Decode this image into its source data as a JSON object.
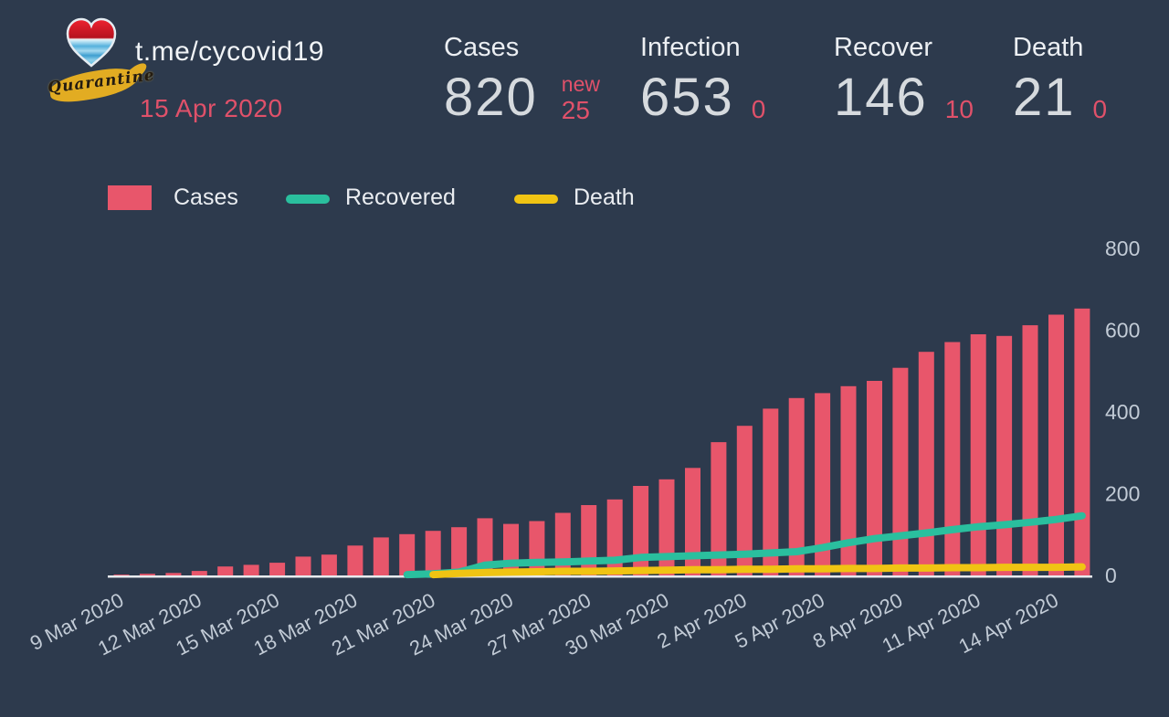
{
  "header": {
    "logo_caption": "Quarantine",
    "channel_link": "t.me/cycovid19",
    "date": "15 Apr 2020"
  },
  "stats": [
    {
      "label": "Cases",
      "value": "820",
      "delta_label": "new",
      "delta": "25"
    },
    {
      "label": "Infection",
      "value": "653",
      "delta": "0"
    },
    {
      "label": "Recover",
      "value": "146",
      "delta": "10"
    },
    {
      "label": "Death",
      "value": "21",
      "delta": "0"
    }
  ],
  "legend": [
    {
      "label": "Cases",
      "color": "#e8566b",
      "swatch": "rect"
    },
    {
      "label": "Recovered",
      "color": "#2abf9e",
      "swatch": "line"
    },
    {
      "label": "Death",
      "color": "#f0c413",
      "swatch": "line"
    }
  ],
  "colors": {
    "background": "#2d3a4d",
    "accent_red": "#e0516a",
    "bar_red": "#e8566b",
    "recovered_teal": "#2abf9e",
    "death_yellow": "#f0c413",
    "axis_line": "#e8ebee",
    "tick_label": "#c2cbd6",
    "heading_text": "#eceff3",
    "number_text": "#d6dade"
  },
  "chart_data": {
    "type": "bar",
    "title": "",
    "xlabel": "",
    "ylabel": "",
    "ylim": [
      0,
      800
    ],
    "y_ticks": [
      0,
      200,
      400,
      600,
      800
    ],
    "y_axis_side": "right",
    "grid": false,
    "legend_position": "top-left",
    "x_tick_every": 3,
    "x_tick_labels": [
      "9 Mar 2020",
      "12 Mar 2020",
      "15 Mar 2020",
      "18 Mar 2020",
      "21 Mar 2020",
      "24 Mar 2020",
      "27 Mar 2020",
      "30 Mar 2020",
      "2 Apr 2020",
      "5 Apr 2020",
      "8 Apr 2020",
      "11 Apr 2020",
      "14 Apr 2020"
    ],
    "categories": [
      "9 Mar 2020",
      "10 Mar 2020",
      "11 Mar 2020",
      "12 Mar 2020",
      "13 Mar 2020",
      "14 Mar 2020",
      "15 Mar 2020",
      "16 Mar 2020",
      "17 Mar 2020",
      "18 Mar 2020",
      "19 Mar 2020",
      "20 Mar 2020",
      "21 Mar 2020",
      "22 Mar 2020",
      "23 Mar 2020",
      "24 Mar 2020",
      "25 Mar 2020",
      "26 Mar 2020",
      "27 Mar 2020",
      "28 Mar 2020",
      "29 Mar 2020",
      "30 Mar 2020",
      "31 Mar 2020",
      "1 Apr 2020",
      "2 Apr 2020",
      "3 Apr 2020",
      "4 Apr 2020",
      "5 Apr 2020",
      "6 Apr 2020",
      "7 Apr 2020",
      "8 Apr 2020",
      "9 Apr 2020",
      "10 Apr 2020",
      "11 Apr 2020",
      "12 Apr 2020",
      "13 Apr 2020",
      "14 Apr 2020",
      "15 Apr 2020"
    ],
    "series": [
      {
        "name": "Cases",
        "type": "bar",
        "color": "#e8566b",
        "values": [
          2,
          4,
          6,
          11,
          22,
          26,
          31,
          46,
          51,
          73,
          93,
          101,
          109,
          118,
          140,
          126,
          133,
          153,
          172,
          186,
          219,
          235,
          263,
          326,
          366,
          408,
          434,
          446,
          463,
          476,
          508,
          547,
          571,
          590,
          586,
          612,
          638,
          653
        ]
      },
      {
        "name": "Recovered",
        "type": "line",
        "color": "#2abf9e",
        "values": [
          null,
          null,
          null,
          null,
          null,
          null,
          null,
          null,
          null,
          null,
          null,
          2,
          4,
          8,
          25,
          30,
          32,
          33,
          35,
          37,
          44,
          46,
          48,
          50,
          52,
          55,
          58,
          68,
          80,
          90,
          97,
          104,
          112,
          119,
          124,
          130,
          137,
          146
        ]
      },
      {
        "name": "Death",
        "type": "line",
        "color": "#f0c413",
        "values": [
          null,
          null,
          null,
          null,
          null,
          null,
          null,
          null,
          null,
          null,
          null,
          null,
          2,
          5,
          7,
          8,
          9,
          10,
          10,
          11,
          12,
          13,
          14,
          14,
          15,
          15,
          16,
          16,
          17,
          17,
          18,
          18,
          19,
          19,
          20,
          20,
          20,
          21
        ]
      }
    ]
  }
}
